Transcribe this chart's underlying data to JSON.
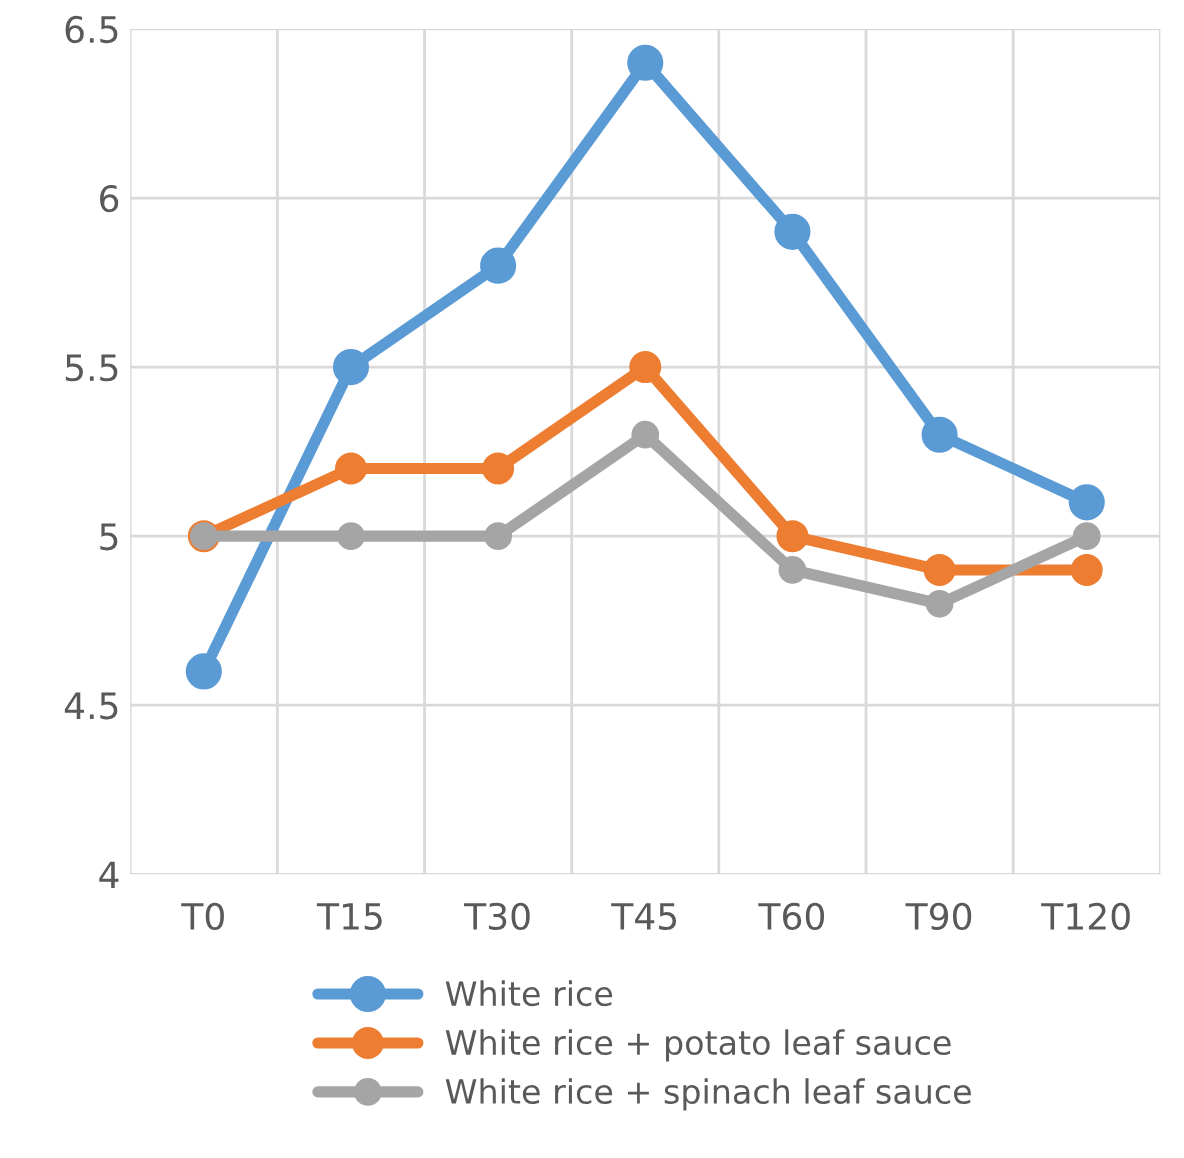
{
  "chart_data": {
    "type": "line",
    "categories": [
      "T0",
      "T15",
      "T30",
      "T45",
      "T60",
      "T90",
      "T120"
    ],
    "series": [
      {
        "name": "White rice",
        "color": "#5b9bd5",
        "values": [
          4.6,
          5.5,
          5.8,
          6.4,
          5.9,
          5.3,
          5.1
        ]
      },
      {
        "name": "White rice + potato leaf sauce",
        "color": "#ed7d31",
        "values": [
          5.0,
          5.2,
          5.2,
          5.5,
          5.0,
          4.9,
          4.9
        ]
      },
      {
        "name": "White rice + spinach leaf sauce",
        "color": "#a5a5a5",
        "values": [
          5.0,
          5.0,
          5.0,
          5.3,
          4.9,
          4.8,
          5.0
        ]
      }
    ],
    "ylim": [
      4,
      6.5
    ],
    "yticks": [
      4,
      4.5,
      5,
      5.5,
      6,
      6.5
    ],
    "grid": true,
    "legend": "bottom",
    "marker": "circle",
    "line_style": "solid"
  }
}
